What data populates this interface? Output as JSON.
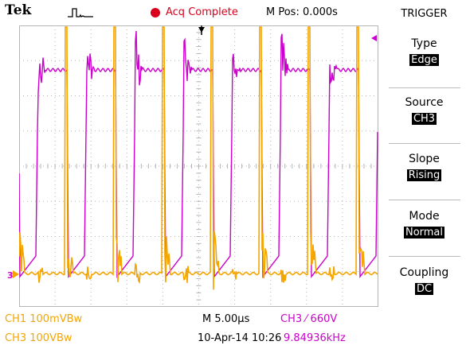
{
  "topbar": {
    "brand": "Tek",
    "acquisition_status": "Acq Complete",
    "main_position": "M Pos: 0.000s"
  },
  "menu": {
    "title": "TRIGGER",
    "items": [
      {
        "label": "Type",
        "value": "Edge"
      },
      {
        "label": "Source",
        "value": "CH3"
      },
      {
        "label": "Slope",
        "value": "Rising"
      },
      {
        "label": "Mode",
        "value": "Normal"
      },
      {
        "label": "Coupling",
        "value": "DC"
      }
    ]
  },
  "bottom": {
    "ch1_scale": "CH1  100mVBw",
    "ch3_scale": "CH3  100VBw",
    "timebase": "M 5.00µs",
    "date_time": "10-Apr-14 10:26",
    "trigger_readout": "CH3 ⁄ 660V",
    "frequency": "9.84936kHz"
  },
  "waveform": {
    "ch3_marker": "3"
  },
  "colors": {
    "ch1": "#f5a500",
    "ch3": "#cc00cc",
    "grid": "#b5b5b5",
    "acq": "#d9001b"
  },
  "icons": [
    "pulse-icon",
    "acq-indicator-icon",
    "trigger-position-icon",
    "trigger-level-icon",
    "ch3-ground-icon"
  ]
}
